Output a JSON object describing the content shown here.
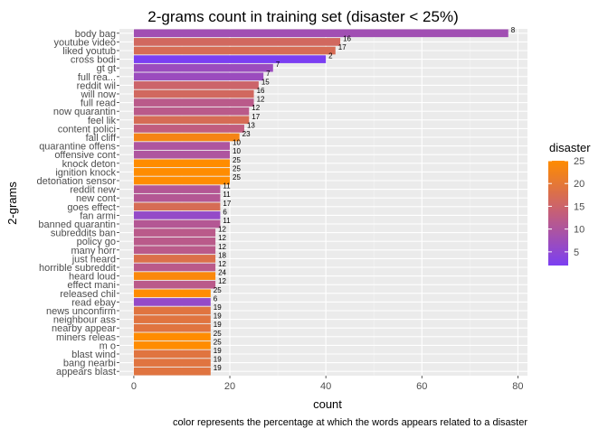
{
  "chart_data": {
    "type": "bar",
    "orientation": "horizontal",
    "title": "2-grams count in training set (disaster < 25%)",
    "xlabel": "count",
    "ylabel": "2-grams",
    "caption": "color represents the percentage at which the words appears related to a disaster",
    "xlim": [
      -3,
      82
    ],
    "xticks": [
      0,
      20,
      40,
      60,
      80
    ],
    "grid": true,
    "legend": {
      "title": "disaster",
      "position": "right",
      "ticks": [
        5,
        10,
        15,
        20,
        25
      ],
      "range": [
        2,
        25
      ],
      "low_color": "#7b3ff2",
      "mid_color": "#c45e7a",
      "high_color": "#ff8c00"
    },
    "categories": [
      "body bag",
      "youtube video",
      "liked youtub",
      "cross bodi",
      "gt gt",
      "full rea...",
      "reddit wil",
      "will now",
      "full read",
      "now quarantin",
      "feel lik",
      "content polici",
      "fall cliff",
      "quarantine offens",
      "offensive cont",
      "knock deton",
      "ignition knock",
      "detonation sensor",
      "reddit new",
      "new cont",
      "goes effect",
      "fan armi",
      "banned quarantin",
      "subreddits ban",
      "policy go",
      "many horr",
      "just heard",
      "horrible subreddit",
      "heard loud",
      "effect mani",
      "released chil",
      "read ebay",
      "news unconfirm",
      "neighbour ass",
      "nearby appear",
      "miners releas",
      "m o",
      "blast wind",
      "bang nearbi",
      "appears blast"
    ],
    "values": [
      78,
      43,
      42,
      40,
      29,
      27,
      26,
      25,
      25,
      24,
      24,
      23,
      22,
      20,
      20,
      20,
      20,
      20,
      18,
      18,
      18,
      18,
      18,
      17,
      17,
      17,
      17,
      17,
      17,
      17,
      16,
      16,
      16,
      16,
      16,
      16,
      16,
      16,
      16,
      16
    ],
    "disaster": [
      8,
      16,
      17,
      2,
      7,
      7,
      15,
      16,
      12,
      12,
      17,
      13,
      23,
      10,
      10,
      25,
      25,
      25,
      11,
      11,
      17,
      6,
      11,
      12,
      12,
      12,
      18,
      12,
      24,
      12,
      25,
      6,
      19,
      19,
      19,
      25,
      25,
      19,
      19,
      19
    ]
  }
}
